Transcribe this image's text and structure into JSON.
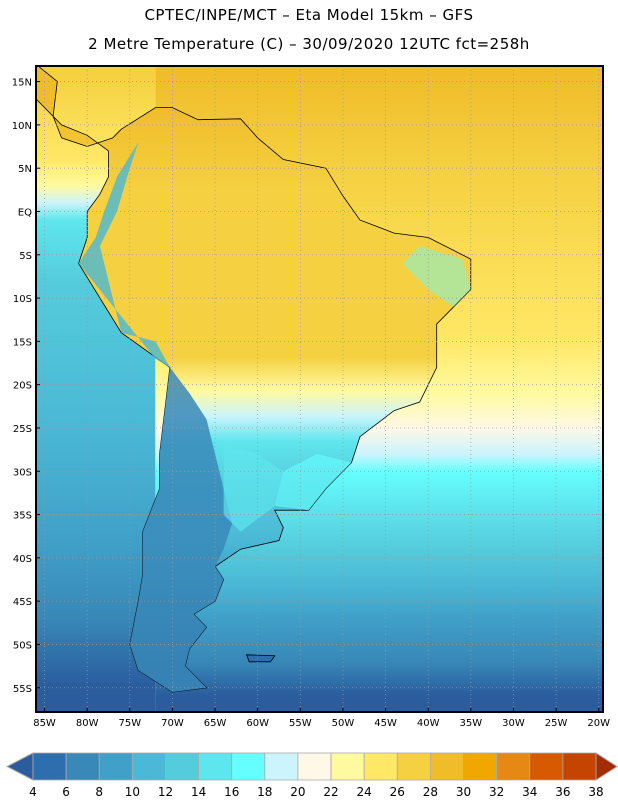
{
  "header": {
    "title": "CPTEC/INPE/MCT –  Eta Model 15km – GFS",
    "subtitle": "2 Metre Temperature (C) – 30/09/2020 12UTC fct=258h"
  },
  "map": {
    "lat_labels": [
      "15N",
      "10N",
      "5N",
      "EQ",
      "5S",
      "10S",
      "15S",
      "20S",
      "25S",
      "30S",
      "35S",
      "40S",
      "45S",
      "50S",
      "55S"
    ],
    "lat_values": [
      15,
      10,
      5,
      0,
      -5,
      -10,
      -15,
      -20,
      -25,
      -30,
      -35,
      -40,
      -45,
      -50,
      -55
    ],
    "lon_labels": [
      "85W",
      "80W",
      "75W",
      "70W",
      "65W",
      "60W",
      "55W",
      "50W",
      "45W",
      "40W",
      "35W",
      "30W",
      "25W",
      "20W"
    ],
    "lon_values": [
      -85,
      -80,
      -75,
      -70,
      -65,
      -60,
      -55,
      -50,
      -45,
      -40,
      -35,
      -30,
      -25,
      -20
    ],
    "extent": {
      "lon": [
        -86,
        -19.5
      ],
      "lat": [
        16.8,
        -57.8
      ]
    }
  },
  "colorbar": {
    "labels": [
      "4",
      "6",
      "8",
      "10",
      "12",
      "14",
      "16",
      "18",
      "20",
      "22",
      "24",
      "26",
      "28",
      "30",
      "32",
      "34",
      "36",
      "38"
    ],
    "below_color": "#2a5c9e",
    "above_color": "#a32d00",
    "colors": [
      "#2e6eae",
      "#3888b8",
      "#40a0c8",
      "#4ab8d6",
      "#55ccdc",
      "#5ee6ee",
      "#66ffff",
      "#ccf4fc",
      "#fff8e6",
      "#fffaa0",
      "#ffe866",
      "#f5d040",
      "#f0bc2a",
      "#f0a800",
      "#e68814",
      "#d85a00",
      "#c44400"
    ]
  }
}
